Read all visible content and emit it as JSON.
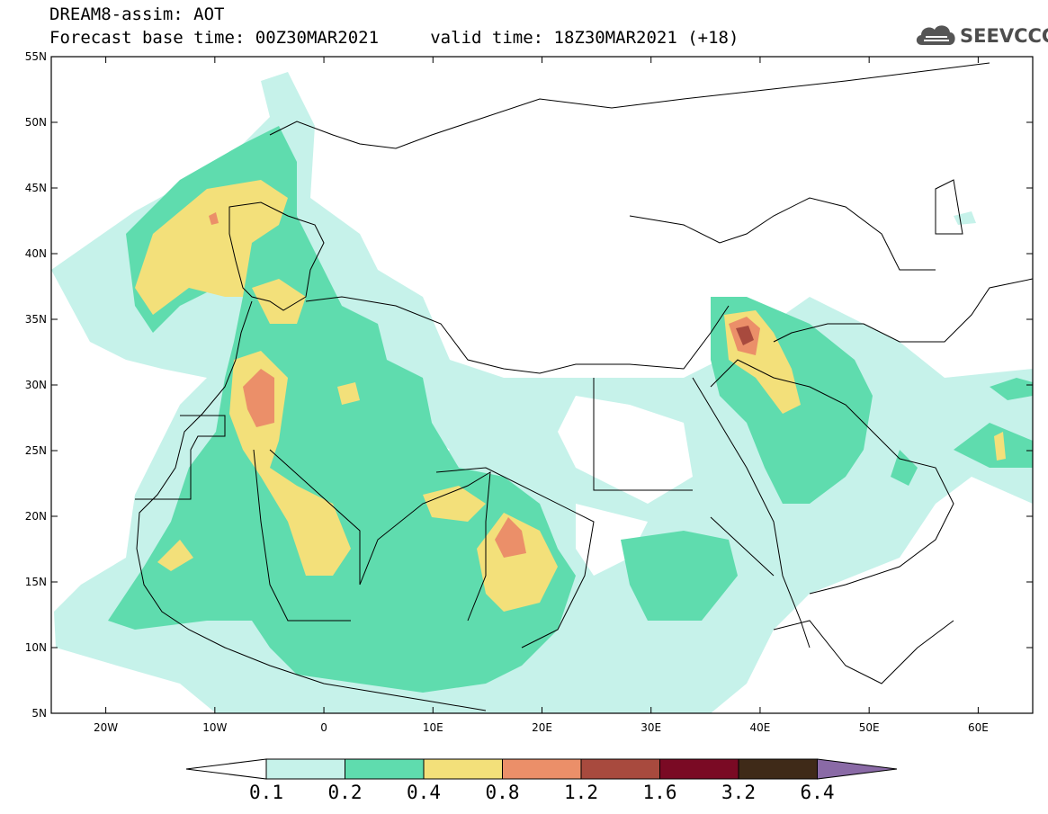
{
  "title": {
    "line1": "DREAM8-assim: AOT",
    "line2": "Forecast base time: 00Z30MAR2021     valid time: 18Z30MAR2021 (+18)"
  },
  "logo": {
    "text": "SEEVCCC",
    "icon": "cloud-icon"
  },
  "map": {
    "lon_range": [
      -25,
      65
    ],
    "lat_range": [
      5,
      55
    ],
    "y_ticks": [
      "55N",
      "50N",
      "45N",
      "40N",
      "35N",
      "30N",
      "25N",
      "20N",
      "15N",
      "10N",
      "5N"
    ],
    "x_ticks": [
      "20W",
      "10W",
      "0",
      "10E",
      "20E",
      "30E",
      "40E",
      "50E",
      "60E"
    ]
  },
  "colorbar": {
    "labels": [
      "0.1",
      "0.2",
      "0.4",
      "0.8",
      "1.2",
      "1.6",
      "3.2",
      "6.4"
    ],
    "colors": [
      "#c6f2ea",
      "#5fdcae",
      "#f3e07a",
      "#eb8f69",
      "#a84a3e",
      "#7a0a24",
      "#3f2a18"
    ],
    "extend_low_color": "#ffffff",
    "extend_high_color": "#8a6aa6"
  }
}
